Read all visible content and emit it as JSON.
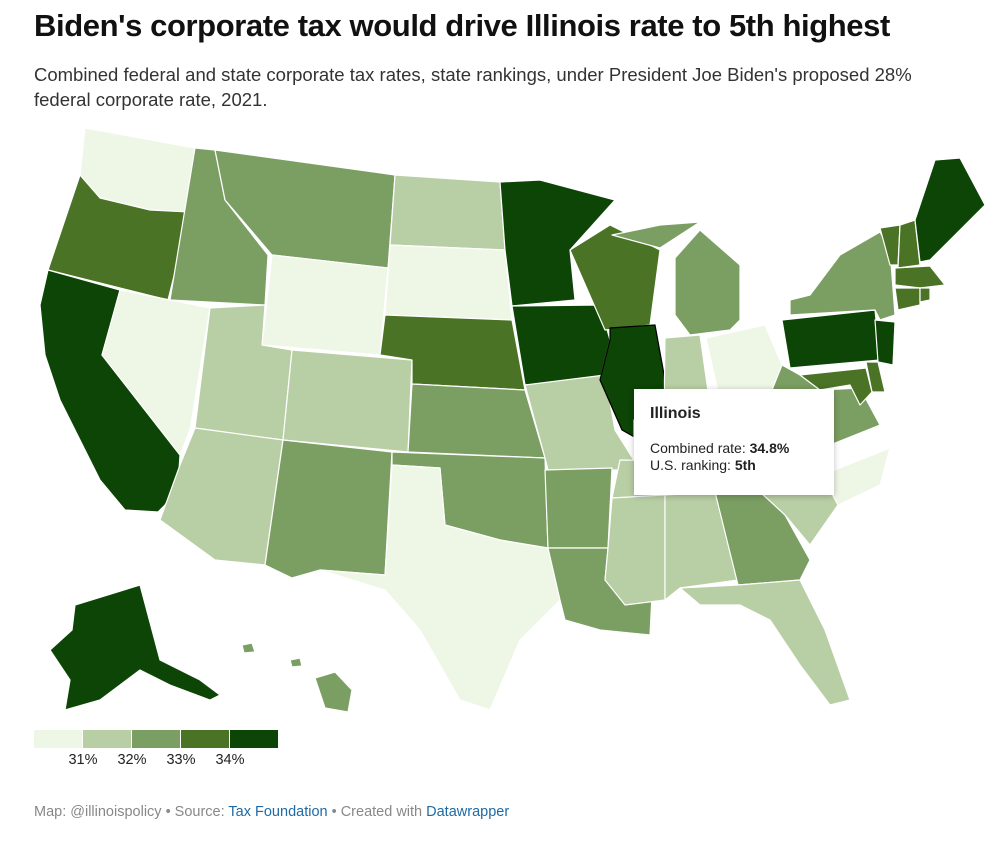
{
  "header": {
    "title": "Biden's corporate tax would drive Illinois rate to 5th highest",
    "subtitle": "Combined federal and state corporate tax rates, state rankings, under President Joe Biden's proposed 28% federal corporate rate, 2021."
  },
  "colors": {
    "c1": "#eef6e6",
    "c2": "#b8cea4",
    "c3": "#7b9e62",
    "c4": "#4a7326",
    "c5": "#0c4505",
    "border": "#ffffff",
    "highlight": "#000000"
  },
  "map": {
    "states": {
      "WA": "c1",
      "OR": "c4",
      "CA": "c5",
      "NV": "c1",
      "ID": "c3",
      "MT": "c3",
      "WY": "c1",
      "UT": "c2",
      "AZ": "c2",
      "CO": "c2",
      "NM": "c3",
      "ND": "c2",
      "SD": "c1",
      "NE": "c4",
      "KS": "c3",
      "OK": "c3",
      "TX": "c1",
      "MN": "c5",
      "IA": "c5",
      "MO": "c2",
      "AR": "c3",
      "LA": "c3",
      "WI": "c4",
      "IL": "c5",
      "MI": "c3",
      "IN": "c2",
      "OH": "c1",
      "KY": "c2",
      "TN": "c2",
      "MS": "c2",
      "AL": "c2",
      "GA": "c3",
      "FL": "c2",
      "SC": "c2",
      "NC": "c1",
      "VA": "c3",
      "WV": "c3",
      "PA": "c5",
      "NY": "c3",
      "VT": "c4",
      "NH": "c4",
      "ME": "c5",
      "MA": "c4",
      "CT": "c4",
      "RI": "c4",
      "NJ": "c5",
      "DE": "c4",
      "MD": "c4",
      "AK": "c5",
      "HI": "c3"
    },
    "highlighted": "IL"
  },
  "tooltip": {
    "name": "Illinois",
    "rate_label": "Combined rate: ",
    "rate": "34.8%",
    "rank_label": "U.S. ranking: ",
    "rank": "5th"
  },
  "legend": {
    "ticks": [
      "31%",
      "32%",
      "33%",
      "34%"
    ]
  },
  "footer": {
    "map_credit": "Map: @illinoispolicy",
    "sep1": " • Source: ",
    "source": "Tax Foundation",
    "sep2": " • Created with ",
    "tool": "Datawrapper"
  }
}
